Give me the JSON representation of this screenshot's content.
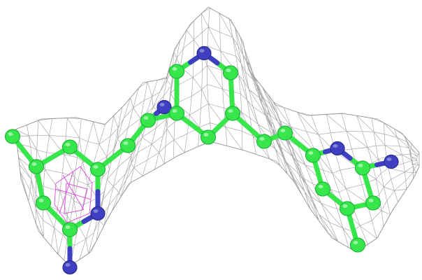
{
  "image": {
    "colors": {
      "background": "#ffffff",
      "mesh": "#8e8e8e",
      "mesh_highlight": "#d23cd6",
      "carbon": "#36e64a",
      "carbon_stroke": "#1fb63a",
      "nitrogen": "#3f3fc2",
      "nitrogen_stroke": "#2a2a8e"
    }
  }
}
